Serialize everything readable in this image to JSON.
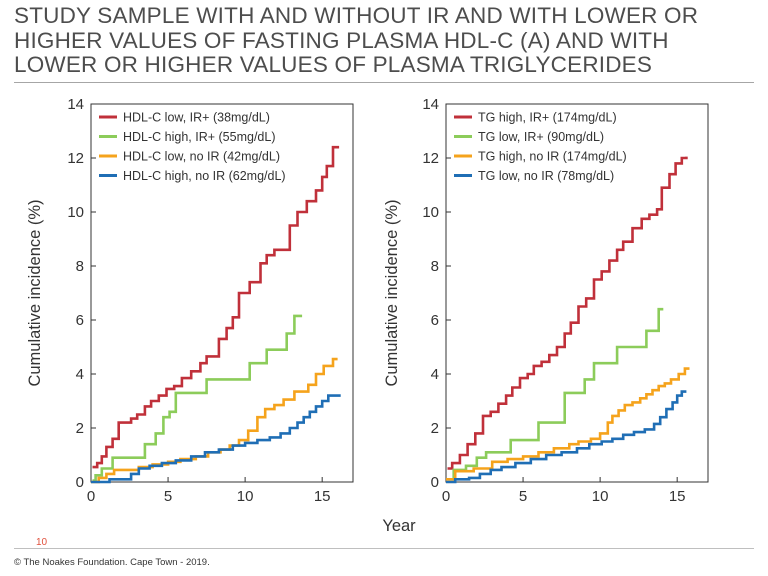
{
  "title": "STUDY SAMPLE WITH AND WITHOUT IR AND WITH LOWER OR HIGHER VALUES OF FASTING PLASMA HDL-C (A) AND WITH LOWER OR HIGHER VALUES OF PLASMA TRIGLYCERIDES",
  "slide_number": "10",
  "copyright": "© The Noakes Foundation. Cape Town - 2019.",
  "shared_xlabel": "Year",
  "chart_data": [
    {
      "type": "line",
      "step": true,
      "title": "",
      "xlabel": "Year",
      "ylabel": "Cumulative incidence (%)",
      "xlim": [
        0,
        17
      ],
      "ylim": [
        0,
        14
      ],
      "xticks": [
        0,
        5,
        10,
        15
      ],
      "yticks": [
        0,
        2,
        4,
        6,
        8,
        10,
        12,
        14
      ],
      "grid": false,
      "legend_position": "top-left",
      "series": [
        {
          "name": "HDL-C low, IR+ (38mg/dL)",
          "color": "#c0303a",
          "points": [
            [
              0.1,
              0.55
            ],
            [
              0.4,
              0.7
            ],
            [
              0.7,
              0.95
            ],
            [
              1.0,
              1.3
            ],
            [
              1.4,
              1.6
            ],
            [
              1.8,
              2.2
            ],
            [
              2.6,
              2.35
            ],
            [
              3.0,
              2.5
            ],
            [
              3.5,
              2.8
            ],
            [
              3.9,
              3.0
            ],
            [
              4.4,
              3.2
            ],
            [
              4.9,
              3.45
            ],
            [
              5.4,
              3.55
            ],
            [
              5.9,
              3.85
            ],
            [
              6.5,
              4.1
            ],
            [
              7.1,
              4.4
            ],
            [
              7.5,
              4.65
            ],
            [
              8.3,
              5.3
            ],
            [
              8.8,
              5.7
            ],
            [
              9.2,
              6.1
            ],
            [
              9.6,
              7.0
            ],
            [
              10.3,
              7.4
            ],
            [
              11.0,
              8.1
            ],
            [
              11.4,
              8.4
            ],
            [
              11.9,
              8.6
            ],
            [
              12.9,
              9.5
            ],
            [
              13.4,
              10.0
            ],
            [
              14.0,
              10.4
            ],
            [
              14.6,
              10.8
            ],
            [
              15.0,
              11.3
            ],
            [
              15.3,
              11.7
            ],
            [
              15.7,
              12.4
            ],
            [
              16.1,
              12.4
            ]
          ]
        },
        {
          "name": "HDL-C high, IR+ (55mg/dL)",
          "color": "#8ccc5a",
          "points": [
            [
              0.1,
              0.05
            ],
            [
              0.3,
              0.25
            ],
            [
              0.7,
              0.5
            ],
            [
              1.4,
              0.9
            ],
            [
              3.5,
              1.4
            ],
            [
              4.2,
              1.8
            ],
            [
              4.7,
              2.4
            ],
            [
              5.1,
              2.6
            ],
            [
              5.5,
              3.3
            ],
            [
              7.5,
              3.8
            ],
            [
              10.3,
              4.4
            ],
            [
              11.4,
              4.9
            ],
            [
              12.7,
              5.5
            ],
            [
              13.2,
              6.15
            ],
            [
              13.7,
              6.15
            ]
          ]
        },
        {
          "name": "HDL-C low, no IR (42mg/dL)",
          "color": "#f5a31c",
          "points": [
            [
              0.0,
              0.0
            ],
            [
              0.5,
              0.15
            ],
            [
              1.0,
              0.3
            ],
            [
              1.5,
              0.45
            ],
            [
              3.1,
              0.55
            ],
            [
              4.0,
              0.65
            ],
            [
              5.0,
              0.75
            ],
            [
              5.8,
              0.85
            ],
            [
              6.8,
              0.95
            ],
            [
              7.6,
              1.1
            ],
            [
              8.4,
              1.2
            ],
            [
              9.0,
              1.35
            ],
            [
              9.6,
              1.55
            ],
            [
              10.2,
              1.9
            ],
            [
              10.8,
              2.4
            ],
            [
              11.3,
              2.7
            ],
            [
              11.9,
              2.85
            ],
            [
              12.5,
              3.05
            ],
            [
              13.2,
              3.35
            ],
            [
              14.1,
              3.6
            ],
            [
              14.6,
              4.0
            ],
            [
              15.1,
              4.3
            ],
            [
              15.7,
              4.55
            ],
            [
              16.0,
              4.55
            ]
          ]
        },
        {
          "name": "HDL-C high, no IR (62mg/dL)",
          "color": "#1f6eb5",
          "points": [
            [
              0.0,
              0.0
            ],
            [
              1.2,
              0.1
            ],
            [
              2.6,
              0.3
            ],
            [
              3.1,
              0.5
            ],
            [
              3.8,
              0.6
            ],
            [
              4.6,
              0.7
            ],
            [
              5.5,
              0.8
            ],
            [
              6.5,
              0.95
            ],
            [
              7.4,
              1.1
            ],
            [
              8.3,
              1.2
            ],
            [
              9.2,
              1.35
            ],
            [
              10.0,
              1.45
            ],
            [
              10.8,
              1.55
            ],
            [
              11.6,
              1.65
            ],
            [
              12.3,
              1.8
            ],
            [
              12.9,
              2.0
            ],
            [
              13.4,
              2.2
            ],
            [
              13.8,
              2.4
            ],
            [
              14.2,
              2.6
            ],
            [
              14.6,
              2.8
            ],
            [
              15.0,
              3.0
            ],
            [
              15.4,
              3.2
            ],
            [
              15.8,
              3.2
            ],
            [
              16.2,
              3.2
            ]
          ]
        }
      ]
    },
    {
      "type": "line",
      "step": true,
      "title": "",
      "xlabel": "Year",
      "ylabel": "Cumulative incidence (%)",
      "xlim": [
        0,
        17
      ],
      "ylim": [
        0,
        14
      ],
      "xticks": [
        0,
        5,
        10,
        15
      ],
      "yticks": [
        0,
        2,
        4,
        6,
        8,
        10,
        12,
        14
      ],
      "grid": false,
      "legend_position": "top-left",
      "series": [
        {
          "name": "TG high, IR+ (174mg/dL)",
          "color": "#c0303a",
          "points": [
            [
              0.1,
              0.5
            ],
            [
              0.4,
              0.7
            ],
            [
              0.9,
              1.0
            ],
            [
              1.4,
              1.4
            ],
            [
              1.9,
              1.8
            ],
            [
              2.4,
              2.45
            ],
            [
              2.9,
              2.6
            ],
            [
              3.4,
              2.9
            ],
            [
              3.9,
              3.2
            ],
            [
              4.3,
              3.5
            ],
            [
              4.8,
              3.85
            ],
            [
              5.3,
              4.0
            ],
            [
              5.7,
              4.3
            ],
            [
              6.2,
              4.45
            ],
            [
              6.7,
              4.7
            ],
            [
              7.2,
              5.0
            ],
            [
              7.7,
              5.5
            ],
            [
              8.1,
              5.9
            ],
            [
              8.6,
              6.5
            ],
            [
              9.1,
              6.8
            ],
            [
              9.6,
              7.5
            ],
            [
              10.1,
              7.8
            ],
            [
              10.6,
              8.2
            ],
            [
              11.1,
              8.6
            ],
            [
              11.5,
              8.9
            ],
            [
              12.1,
              9.4
            ],
            [
              12.7,
              9.75
            ],
            [
              13.2,
              9.9
            ],
            [
              13.7,
              10.1
            ],
            [
              14.0,
              10.9
            ],
            [
              14.5,
              11.4
            ],
            [
              14.9,
              11.8
            ],
            [
              15.3,
              12.0
            ],
            [
              15.6,
              12.05
            ]
          ]
        },
        {
          "name": "TG low, IR+ (90mg/dL)",
          "color": "#8ccc5a",
          "points": [
            [
              0.1,
              0.1
            ],
            [
              0.5,
              0.45
            ],
            [
              1.3,
              0.6
            ],
            [
              2.0,
              0.9
            ],
            [
              2.6,
              1.1
            ],
            [
              4.2,
              1.55
            ],
            [
              6.0,
              2.2
            ],
            [
              7.7,
              3.3
            ],
            [
              9.0,
              3.8
            ],
            [
              9.6,
              4.4
            ],
            [
              11.1,
              5.0
            ],
            [
              13.0,
              5.6
            ],
            [
              13.8,
              6.4
            ],
            [
              14.1,
              6.4
            ]
          ]
        },
        {
          "name": "TG high, no IR (174mg/dL)",
          "color": "#f5a31c",
          "points": [
            [
              0.0,
              0.1
            ],
            [
              0.6,
              0.4
            ],
            [
              1.8,
              0.5
            ],
            [
              3.0,
              0.75
            ],
            [
              4.0,
              0.85
            ],
            [
              5.0,
              0.95
            ],
            [
              6.0,
              1.1
            ],
            [
              7.0,
              1.25
            ],
            [
              8.0,
              1.4
            ],
            [
              8.6,
              1.5
            ],
            [
              9.4,
              1.6
            ],
            [
              10.0,
              1.8
            ],
            [
              10.5,
              2.2
            ],
            [
              10.8,
              2.45
            ],
            [
              11.2,
              2.65
            ],
            [
              11.6,
              2.85
            ],
            [
              12.1,
              2.95
            ],
            [
              12.6,
              3.1
            ],
            [
              13.0,
              3.25
            ],
            [
              13.4,
              3.4
            ],
            [
              13.8,
              3.55
            ],
            [
              14.2,
              3.65
            ],
            [
              14.6,
              3.8
            ],
            [
              15.1,
              4.0
            ],
            [
              15.5,
              4.2
            ],
            [
              15.8,
              4.2
            ]
          ]
        },
        {
          "name": "TG low, no IR (78mg/dL)",
          "color": "#1f6eb5",
          "points": [
            [
              0.0,
              0.0
            ],
            [
              0.6,
              0.1
            ],
            [
              1.5,
              0.15
            ],
            [
              2.2,
              0.3
            ],
            [
              2.9,
              0.45
            ],
            [
              3.6,
              0.55
            ],
            [
              4.5,
              0.7
            ],
            [
              5.5,
              0.85
            ],
            [
              6.5,
              1.0
            ],
            [
              7.5,
              1.1
            ],
            [
              8.5,
              1.25
            ],
            [
              9.3,
              1.4
            ],
            [
              10.1,
              1.5
            ],
            [
              10.8,
              1.6
            ],
            [
              11.5,
              1.75
            ],
            [
              12.2,
              1.85
            ],
            [
              12.9,
              1.95
            ],
            [
              13.5,
              2.15
            ],
            [
              13.9,
              2.4
            ],
            [
              14.3,
              2.7
            ],
            [
              14.7,
              2.95
            ],
            [
              15.0,
              3.2
            ],
            [
              15.3,
              3.35
            ],
            [
              15.6,
              3.35
            ]
          ]
        }
      ]
    }
  ]
}
